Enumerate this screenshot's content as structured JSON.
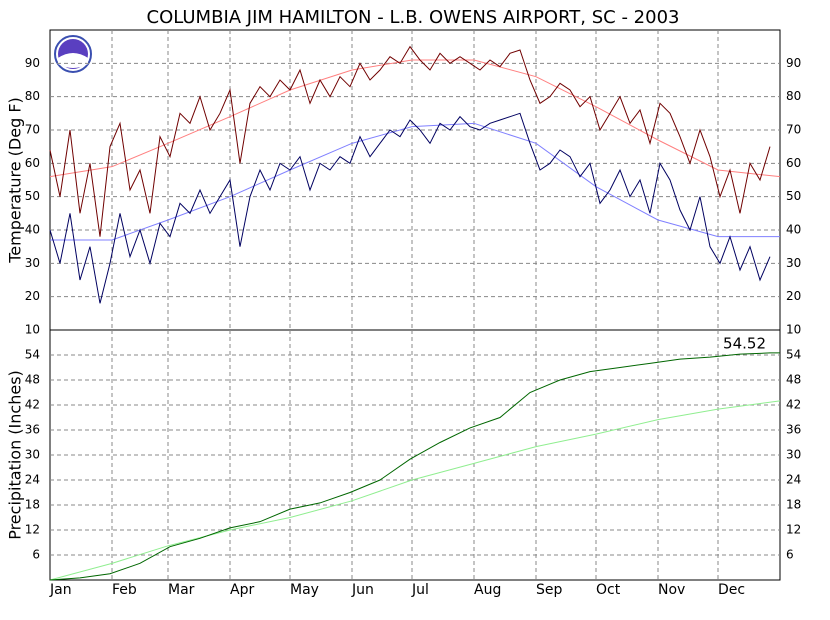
{
  "chart_data": [
    {
      "type": "line",
      "title": "COLUMBIA JIM HAMILTON - L.B. OWENS AIRPORT, SC - 2003",
      "ylabel": "Temperature (Deg F)",
      "xlim": [
        1,
        366
      ],
      "xticks": [
        {
          "value": 1,
          "label": "Jan"
        },
        {
          "value": 32,
          "label": "Feb"
        },
        {
          "value": 60,
          "label": "Mar"
        },
        {
          "value": 91,
          "label": "Apr"
        },
        {
          "value": 121,
          "label": "May"
        },
        {
          "value": 152,
          "label": "Jun"
        },
        {
          "value": 182,
          "label": "Jul"
        },
        {
          "value": 213,
          "label": "Aug"
        },
        {
          "value": 244,
          "label": "Sep"
        },
        {
          "value": 274,
          "label": "Oct"
        },
        {
          "value": 305,
          "label": "Nov"
        },
        {
          "value": 335,
          "label": "Dec"
        }
      ],
      "ylim": [
        10,
        100
      ],
      "yticks": [
        10,
        20,
        30,
        40,
        50,
        60,
        70,
        80,
        90
      ],
      "grid": true,
      "series": [
        {
          "color": "#ff8080",
          "x": [
            1,
            32,
            60,
            91,
            121,
            152,
            182,
            213,
            244,
            274,
            305,
            335,
            366
          ],
          "values": [
            56,
            59,
            66,
            74,
            82,
            88,
            91,
            91,
            86,
            77,
            67,
            58,
            56
          ]
        },
        {
          "color": "#8080ff",
          "x": [
            1,
            32,
            60,
            91,
            121,
            152,
            182,
            213,
            244,
            274,
            305,
            335,
            366
          ],
          "values": [
            37,
            37,
            43,
            50,
            58,
            66,
            71,
            72,
            66,
            53,
            43,
            38,
            38
          ]
        },
        {
          "color": "#700000",
          "x": [
            1,
            6,
            11,
            16,
            21,
            26,
            31,
            36,
            41,
            46,
            51,
            56,
            61,
            66,
            71,
            76,
            81,
            86,
            91,
            96,
            101,
            106,
            111,
            116,
            121,
            126,
            131,
            136,
            141,
            146,
            151,
            156,
            161,
            166,
            171,
            176,
            181,
            186,
            191,
            196,
            201,
            206,
            211,
            216,
            221,
            226,
            231,
            236,
            241,
            246,
            251,
            256,
            261,
            266,
            271,
            276,
            281,
            286,
            291,
            296,
            301,
            306,
            311,
            316,
            321,
            326,
            331,
            336,
            341,
            346,
            351,
            356,
            361
          ],
          "values": [
            64,
            50,
            70,
            45,
            60,
            38,
            65,
            72,
            52,
            58,
            45,
            68,
            62,
            75,
            72,
            80,
            70,
            75,
            82,
            60,
            78,
            83,
            80,
            85,
            82,
            88,
            78,
            85,
            80,
            86,
            83,
            90,
            85,
            88,
            92,
            90,
            95,
            91,
            88,
            93,
            90,
            92,
            90,
            88,
            91,
            89,
            93,
            94,
            85,
            78,
            80,
            84,
            82,
            77,
            80,
            70,
            75,
            80,
            72,
            76,
            66,
            78,
            75,
            68,
            60,
            70,
            62,
            50,
            58,
            45,
            60,
            55,
            65
          ]
        },
        {
          "color": "#000060",
          "x": [
            1,
            6,
            11,
            16,
            21,
            26,
            31,
            36,
            41,
            46,
            51,
            56,
            61,
            66,
            71,
            76,
            81,
            86,
            91,
            96,
            101,
            106,
            111,
            116,
            121,
            126,
            131,
            136,
            141,
            146,
            151,
            156,
            161,
            166,
            171,
            176,
            181,
            186,
            191,
            196,
            201,
            206,
            211,
            216,
            221,
            226,
            231,
            236,
            241,
            246,
            251,
            256,
            261,
            266,
            271,
            276,
            281,
            286,
            291,
            296,
            301,
            306,
            311,
            316,
            321,
            326,
            331,
            336,
            341,
            346,
            351,
            356,
            361
          ],
          "values": [
            40,
            30,
            45,
            25,
            35,
            18,
            30,
            45,
            32,
            40,
            30,
            42,
            38,
            48,
            45,
            52,
            45,
            50,
            55,
            35,
            50,
            58,
            52,
            60,
            58,
            62,
            52,
            60,
            58,
            62,
            60,
            68,
            62,
            66,
            70,
            68,
            73,
            70,
            66,
            72,
            70,
            74,
            71,
            70,
            72,
            73,
            74,
            75,
            66,
            58,
            60,
            64,
            62,
            56,
            60,
            48,
            52,
            58,
            50,
            55,
            45,
            60,
            55,
            46,
            40,
            50,
            35,
            30,
            38,
            28,
            35,
            25,
            32
          ]
        }
      ]
    },
    {
      "type": "line",
      "ylabel": "Precipitation (Inches)",
      "xlim": [
        1,
        366
      ],
      "xticks": [
        {
          "value": 1,
          "label": "Jan"
        },
        {
          "value": 32,
          "label": "Feb"
        },
        {
          "value": 60,
          "label": "Mar"
        },
        {
          "value": 91,
          "label": "Apr"
        },
        {
          "value": 121,
          "label": "May"
        },
        {
          "value": 152,
          "label": "Jun"
        },
        {
          "value": 182,
          "label": "Jul"
        },
        {
          "value": 213,
          "label": "Aug"
        },
        {
          "value": 244,
          "label": "Sep"
        },
        {
          "value": 274,
          "label": "Oct"
        },
        {
          "value": 305,
          "label": "Nov"
        },
        {
          "value": 335,
          "label": "Dec"
        }
      ],
      "ylim": [
        0,
        60
      ],
      "yticks": [
        6,
        12,
        18,
        24,
        30,
        36,
        42,
        48,
        54
      ],
      "grid": true,
      "annotation": {
        "text": "54.52",
        "value": 54.52
      },
      "series": [
        {
          "color": "#90ee90",
          "x": [
            1,
            32,
            60,
            91,
            121,
            152,
            182,
            213,
            244,
            274,
            305,
            335,
            366
          ],
          "values": [
            0,
            4,
            8.2,
            12,
            15,
            19,
            24,
            28,
            32,
            35,
            38.5,
            41,
            43
          ]
        },
        {
          "color": "#006600",
          "x": [
            1,
            16,
            31,
            46,
            61,
            76,
            91,
            106,
            121,
            136,
            151,
            166,
            181,
            196,
            211,
            226,
            241,
            256,
            271,
            286,
            301,
            316,
            331,
            346,
            361,
            366
          ],
          "values": [
            0,
            0.5,
            1.5,
            4,
            8,
            10,
            12.5,
            14,
            17,
            18.5,
            21,
            24,
            29,
            33,
            36.5,
            39,
            45,
            48,
            50,
            51,
            52,
            53,
            53.5,
            54.2,
            54.5,
            54.52
          ]
        }
      ]
    }
  ]
}
